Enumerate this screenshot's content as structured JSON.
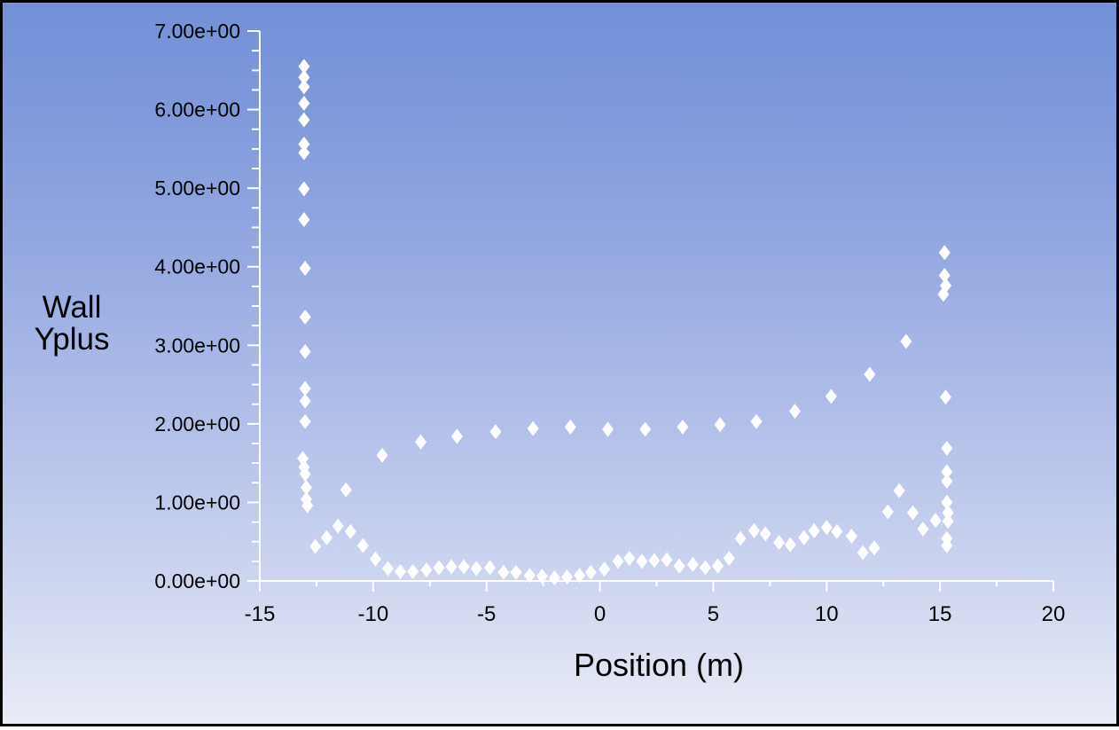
{
  "window": {
    "frame_border_color": "#000000",
    "background_top_color": "#7390d8",
    "background_bottom_color": "#e9ecf7"
  },
  "chart_data": {
    "type": "scatter",
    "title": "",
    "xlabel": "Position (m)",
    "ylabel_line1": "Wall",
    "ylabel_line2": "Yplus",
    "xlim": [
      -15,
      20
    ],
    "ylim": [
      0,
      7
    ],
    "grid": false,
    "legend": "none",
    "x_major_ticks": [
      -15,
      -10,
      -5,
      0,
      5,
      10,
      15,
      20
    ],
    "x_tick_labels": [
      "-15",
      "-10",
      "-5",
      "0",
      "5",
      "10",
      "15",
      "20"
    ],
    "x_minor_step": 2.5,
    "y_major_ticks": [
      0,
      1,
      2,
      3,
      4,
      5,
      6,
      7
    ],
    "y_tick_labels": [
      "0.00e+00",
      "1.00e+00",
      "2.00e+00",
      "3.00e+00",
      "4.00e+00",
      "5.00e+00",
      "6.00e+00",
      "7.00e+00"
    ],
    "y_minor_step": 0.25,
    "axis_color": "#ffffff",
    "text_color": "#000000",
    "marker": {
      "shape": "diamond",
      "color": "#ffffff"
    },
    "points": [
      [
        -13.05,
        6.55
      ],
      [
        -13.05,
        6.41
      ],
      [
        -13.05,
        6.29
      ],
      [
        -13.05,
        6.08
      ],
      [
        -13.05,
        5.87
      ],
      [
        -13.05,
        5.56
      ],
      [
        -13.05,
        5.45
      ],
      [
        -13.05,
        4.99
      ],
      [
        -13.05,
        4.6
      ],
      [
        -13.0,
        3.98
      ],
      [
        -13.0,
        3.36
      ],
      [
        -13.0,
        2.92
      ],
      [
        -13.0,
        2.45
      ],
      [
        -13.0,
        2.29
      ],
      [
        -13.0,
        2.03
      ],
      [
        -13.1,
        1.56
      ],
      [
        -13.05,
        1.45
      ],
      [
        -13.0,
        1.36
      ],
      [
        -12.95,
        1.19
      ],
      [
        -12.95,
        1.04
      ],
      [
        -12.9,
        0.96
      ],
      [
        -11.2,
        1.16
      ],
      [
        -12.55,
        0.44
      ],
      [
        -12.05,
        0.55
      ],
      [
        -11.55,
        0.7
      ],
      [
        -11.0,
        0.63
      ],
      [
        -10.45,
        0.45
      ],
      [
        -9.9,
        0.28
      ],
      [
        -9.35,
        0.16
      ],
      [
        -8.8,
        0.12
      ],
      [
        -8.25,
        0.12
      ],
      [
        -7.65,
        0.14
      ],
      [
        -7.1,
        0.17
      ],
      [
        -6.55,
        0.18
      ],
      [
        -6.0,
        0.18
      ],
      [
        -5.45,
        0.16
      ],
      [
        -4.85,
        0.17
      ],
      [
        -4.25,
        0.11
      ],
      [
        -3.7,
        0.11
      ],
      [
        -3.1,
        0.07
      ],
      [
        -2.55,
        0.06
      ],
      [
        -2.0,
        0.04
      ],
      [
        -1.45,
        0.05
      ],
      [
        -0.9,
        0.07
      ],
      [
        -0.4,
        0.11
      ],
      [
        0.2,
        0.15
      ],
      [
        0.8,
        0.25
      ],
      [
        1.3,
        0.29
      ],
      [
        1.85,
        0.25
      ],
      [
        2.4,
        0.26
      ],
      [
        2.95,
        0.27
      ],
      [
        3.5,
        0.19
      ],
      [
        4.1,
        0.21
      ],
      [
        4.65,
        0.17
      ],
      [
        5.2,
        0.19
      ],
      [
        5.7,
        0.29
      ],
      [
        6.2,
        0.54
      ],
      [
        6.8,
        0.64
      ],
      [
        7.3,
        0.6
      ],
      [
        7.9,
        0.49
      ],
      [
        8.4,
        0.46
      ],
      [
        9.0,
        0.55
      ],
      [
        9.45,
        0.64
      ],
      [
        10.0,
        0.68
      ],
      [
        10.45,
        0.63
      ],
      [
        11.1,
        0.57
      ],
      [
        11.6,
        0.36
      ],
      [
        12.1,
        0.42
      ],
      [
        12.7,
        0.88
      ],
      [
        13.2,
        1.15
      ],
      [
        13.8,
        0.87
      ],
      [
        14.25,
        0.66
      ],
      [
        14.8,
        0.77
      ],
      [
        -9.6,
        1.6
      ],
      [
        -7.9,
        1.77
      ],
      [
        -6.3,
        1.84
      ],
      [
        -4.6,
        1.9
      ],
      [
        -2.95,
        1.94
      ],
      [
        -1.3,
        1.96
      ],
      [
        0.35,
        1.93
      ],
      [
        2.0,
        1.93
      ],
      [
        3.65,
        1.96
      ],
      [
        5.3,
        1.99
      ],
      [
        6.9,
        2.03
      ],
      [
        8.6,
        2.16
      ],
      [
        10.2,
        2.35
      ],
      [
        11.9,
        2.63
      ],
      [
        13.5,
        3.05
      ],
      [
        15.2,
        4.18
      ],
      [
        15.2,
        3.89
      ],
      [
        15.25,
        3.76
      ],
      [
        15.15,
        3.65
      ],
      [
        15.25,
        2.34
      ],
      [
        15.3,
        1.69
      ],
      [
        15.3,
        1.39
      ],
      [
        15.3,
        1.27
      ],
      [
        15.3,
        1.0
      ],
      [
        15.35,
        0.87
      ],
      [
        15.35,
        0.76
      ],
      [
        15.3,
        0.54
      ],
      [
        15.3,
        0.45
      ]
    ]
  }
}
